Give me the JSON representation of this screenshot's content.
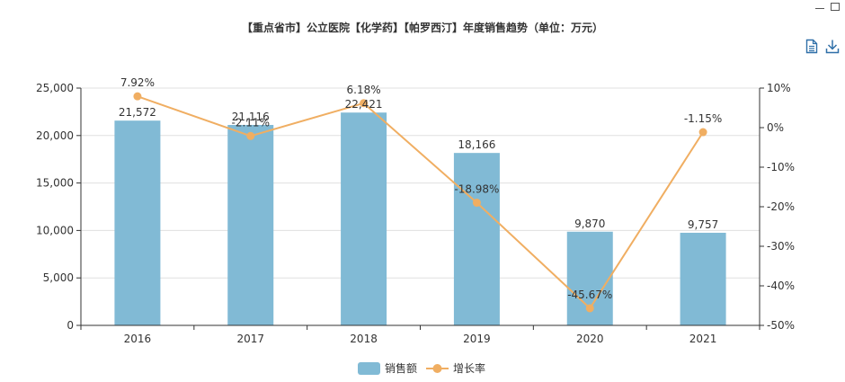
{
  "toolbar": {
    "minimize_icon": "minimize-icon",
    "data_view_icon": "document-icon",
    "download_icon": "download-icon"
  },
  "chart_data": {
    "type": "bar",
    "title": "【重点省市】公立医院【化学药】【帕罗西汀】年度销售趋势（单位：万元）",
    "categories": [
      "2016",
      "2017",
      "2018",
      "2019",
      "2020",
      "2021"
    ],
    "series": [
      {
        "name": "销售额",
        "type": "bar",
        "axis": "left",
        "color": "#81bad5",
        "values": [
          21572,
          21116,
          22421,
          18166,
          9870,
          9757
        ],
        "labels": [
          "21,572",
          "21,116",
          "22,421",
          "18,166",
          "9,870",
          "9,757"
        ]
      },
      {
        "name": "增长率",
        "type": "line",
        "axis": "right",
        "color": "#f0ae62",
        "values": [
          7.92,
          -2.11,
          6.18,
          -18.98,
          -45.67,
          -1.15
        ],
        "labels": [
          "7.92%",
          "-2.11%",
          "6.18%",
          "-18.98%",
          "-45.67%",
          "-1.15%"
        ]
      }
    ],
    "y_left": {
      "min": 0,
      "max": 25000,
      "ticks": [
        0,
        5000,
        10000,
        15000,
        20000,
        25000
      ],
      "tick_labels": [
        "0",
        "5,000",
        "10,000",
        "15,000",
        "20,000",
        "25,000"
      ]
    },
    "y_right": {
      "min": -50,
      "max": 10,
      "ticks": [
        -50,
        -40,
        -30,
        -20,
        -10,
        0,
        10
      ],
      "tick_labels": [
        "-50%",
        "-40%",
        "-30%",
        "-20%",
        "-10%",
        "0%",
        "10%"
      ]
    },
    "grid": true,
    "legend_position": "bottom-center"
  }
}
